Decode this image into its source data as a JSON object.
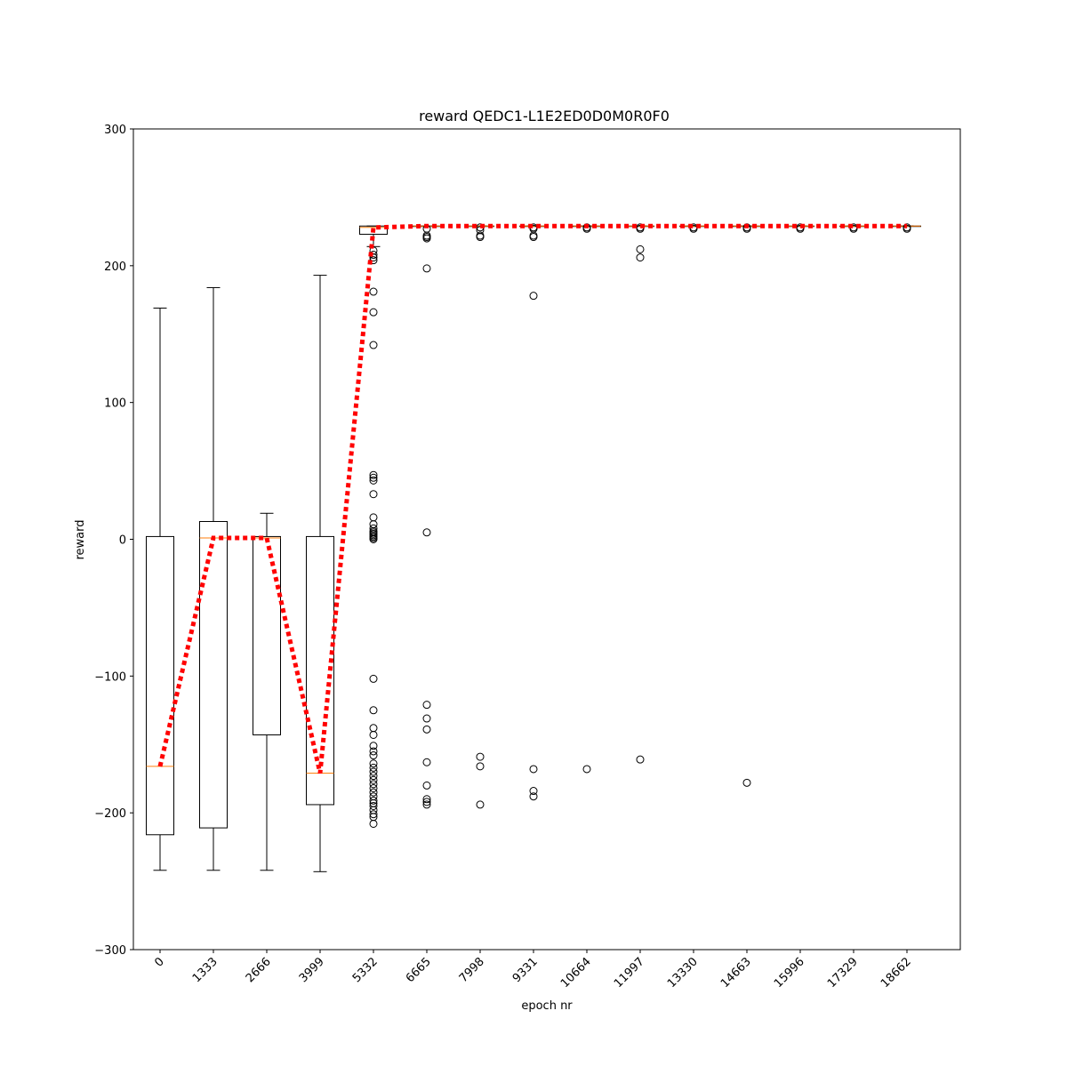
{
  "chart_data": {
    "type": "box",
    "title": "reward QEDC1-L1E2ED0D0M0R0F0",
    "xlabel": "epoch nr",
    "ylabel": "reward",
    "ylim": [
      -300,
      300
    ],
    "yticks": [
      -300,
      -200,
      -100,
      0,
      100,
      200,
      300
    ],
    "ytick_labels": [
      "−300",
      "−200",
      "−100",
      "0",
      "100",
      "200",
      "300"
    ],
    "categories": [
      "0",
      "1333",
      "2666",
      "3999",
      "5332",
      "6665",
      "7998",
      "9331",
      "10664",
      "11997",
      "13330",
      "14663",
      "15996",
      "17329",
      "18662"
    ],
    "boxes": [
      {
        "whislo": -242,
        "q1": -216,
        "med": -166,
        "q3": 2,
        "whishi": 169,
        "fliers": []
      },
      {
        "whislo": -242,
        "q1": -211,
        "med": 1,
        "q3": 13,
        "whishi": 184,
        "fliers": []
      },
      {
        "whislo": -242,
        "q1": -143,
        "med": 1,
        "q3": 2,
        "whishi": 19,
        "fliers": []
      },
      {
        "whislo": -243,
        "q1": -194,
        "med": -171,
        "q3": 2,
        "whishi": 193,
        "fliers": []
      },
      {
        "whislo": 214,
        "q1": 223,
        "med": 228,
        "q3": 229,
        "whishi": 229,
        "fliers": [
          211,
          208,
          206,
          204,
          181,
          166,
          142,
          47,
          45,
          43,
          33,
          16,
          11,
          8,
          6,
          5,
          4,
          3,
          2,
          1,
          0,
          -102,
          -125,
          -138,
          -143,
          -151,
          -155,
          -158,
          -164,
          -167,
          -170,
          -173,
          -176,
          -179,
          -182,
          -185,
          -188,
          -191,
          -193,
          -195,
          -198,
          -201,
          -203,
          -208
        ]
      },
      {
        "whislo": 229,
        "q1": 229,
        "med": 229,
        "q3": 229,
        "whishi": 229,
        "fliers": [
          227,
          222,
          221,
          220,
          198,
          5,
          -121,
          -131,
          -139,
          -163,
          -180,
          -190,
          -192,
          -194
        ]
      },
      {
        "whislo": 229,
        "q1": 229,
        "med": 229,
        "q3": 229,
        "whishi": 229,
        "fliers": [
          228,
          226,
          222,
          221,
          -159,
          -166,
          -194
        ]
      },
      {
        "whislo": 229,
        "q1": 229,
        "med": 229,
        "q3": 229,
        "whishi": 229,
        "fliers": [
          228,
          227,
          222,
          221,
          178,
          -168,
          -184,
          -188
        ]
      },
      {
        "whislo": 229,
        "q1": 229,
        "med": 229,
        "q3": 229,
        "whishi": 229,
        "fliers": [
          228,
          227,
          -168
        ]
      },
      {
        "whislo": 229,
        "q1": 229,
        "med": 229,
        "q3": 229,
        "whishi": 229,
        "fliers": [
          228,
          227,
          212,
          206,
          -161
        ]
      },
      {
        "whislo": 229,
        "q1": 229,
        "med": 229,
        "q3": 229,
        "whishi": 229,
        "fliers": [
          228,
          227
        ]
      },
      {
        "whislo": 229,
        "q1": 229,
        "med": 229,
        "q3": 229,
        "whishi": 229,
        "fliers": [
          228,
          227,
          -178
        ]
      },
      {
        "whislo": 229,
        "q1": 229,
        "med": 229,
        "q3": 229,
        "whishi": 229,
        "fliers": [
          228,
          227
        ]
      },
      {
        "whislo": 229,
        "q1": 229,
        "med": 229,
        "q3": 229,
        "whishi": 229,
        "fliers": [
          228,
          227
        ]
      },
      {
        "whislo": 229,
        "q1": 229,
        "med": 229,
        "q3": 229,
        "whishi": 229,
        "fliers": [
          228,
          227
        ]
      }
    ],
    "mean_line": {
      "color": "#ff0000",
      "style": "dotted",
      "values": [
        -166,
        1,
        1,
        -171,
        228,
        229,
        229,
        229,
        229,
        229,
        229,
        229,
        229,
        229,
        229
      ]
    },
    "colors": {
      "box": "#000000",
      "median": "#ff7f0e",
      "mean_line": "#ff0000"
    },
    "legend": "none",
    "grid": false
  }
}
